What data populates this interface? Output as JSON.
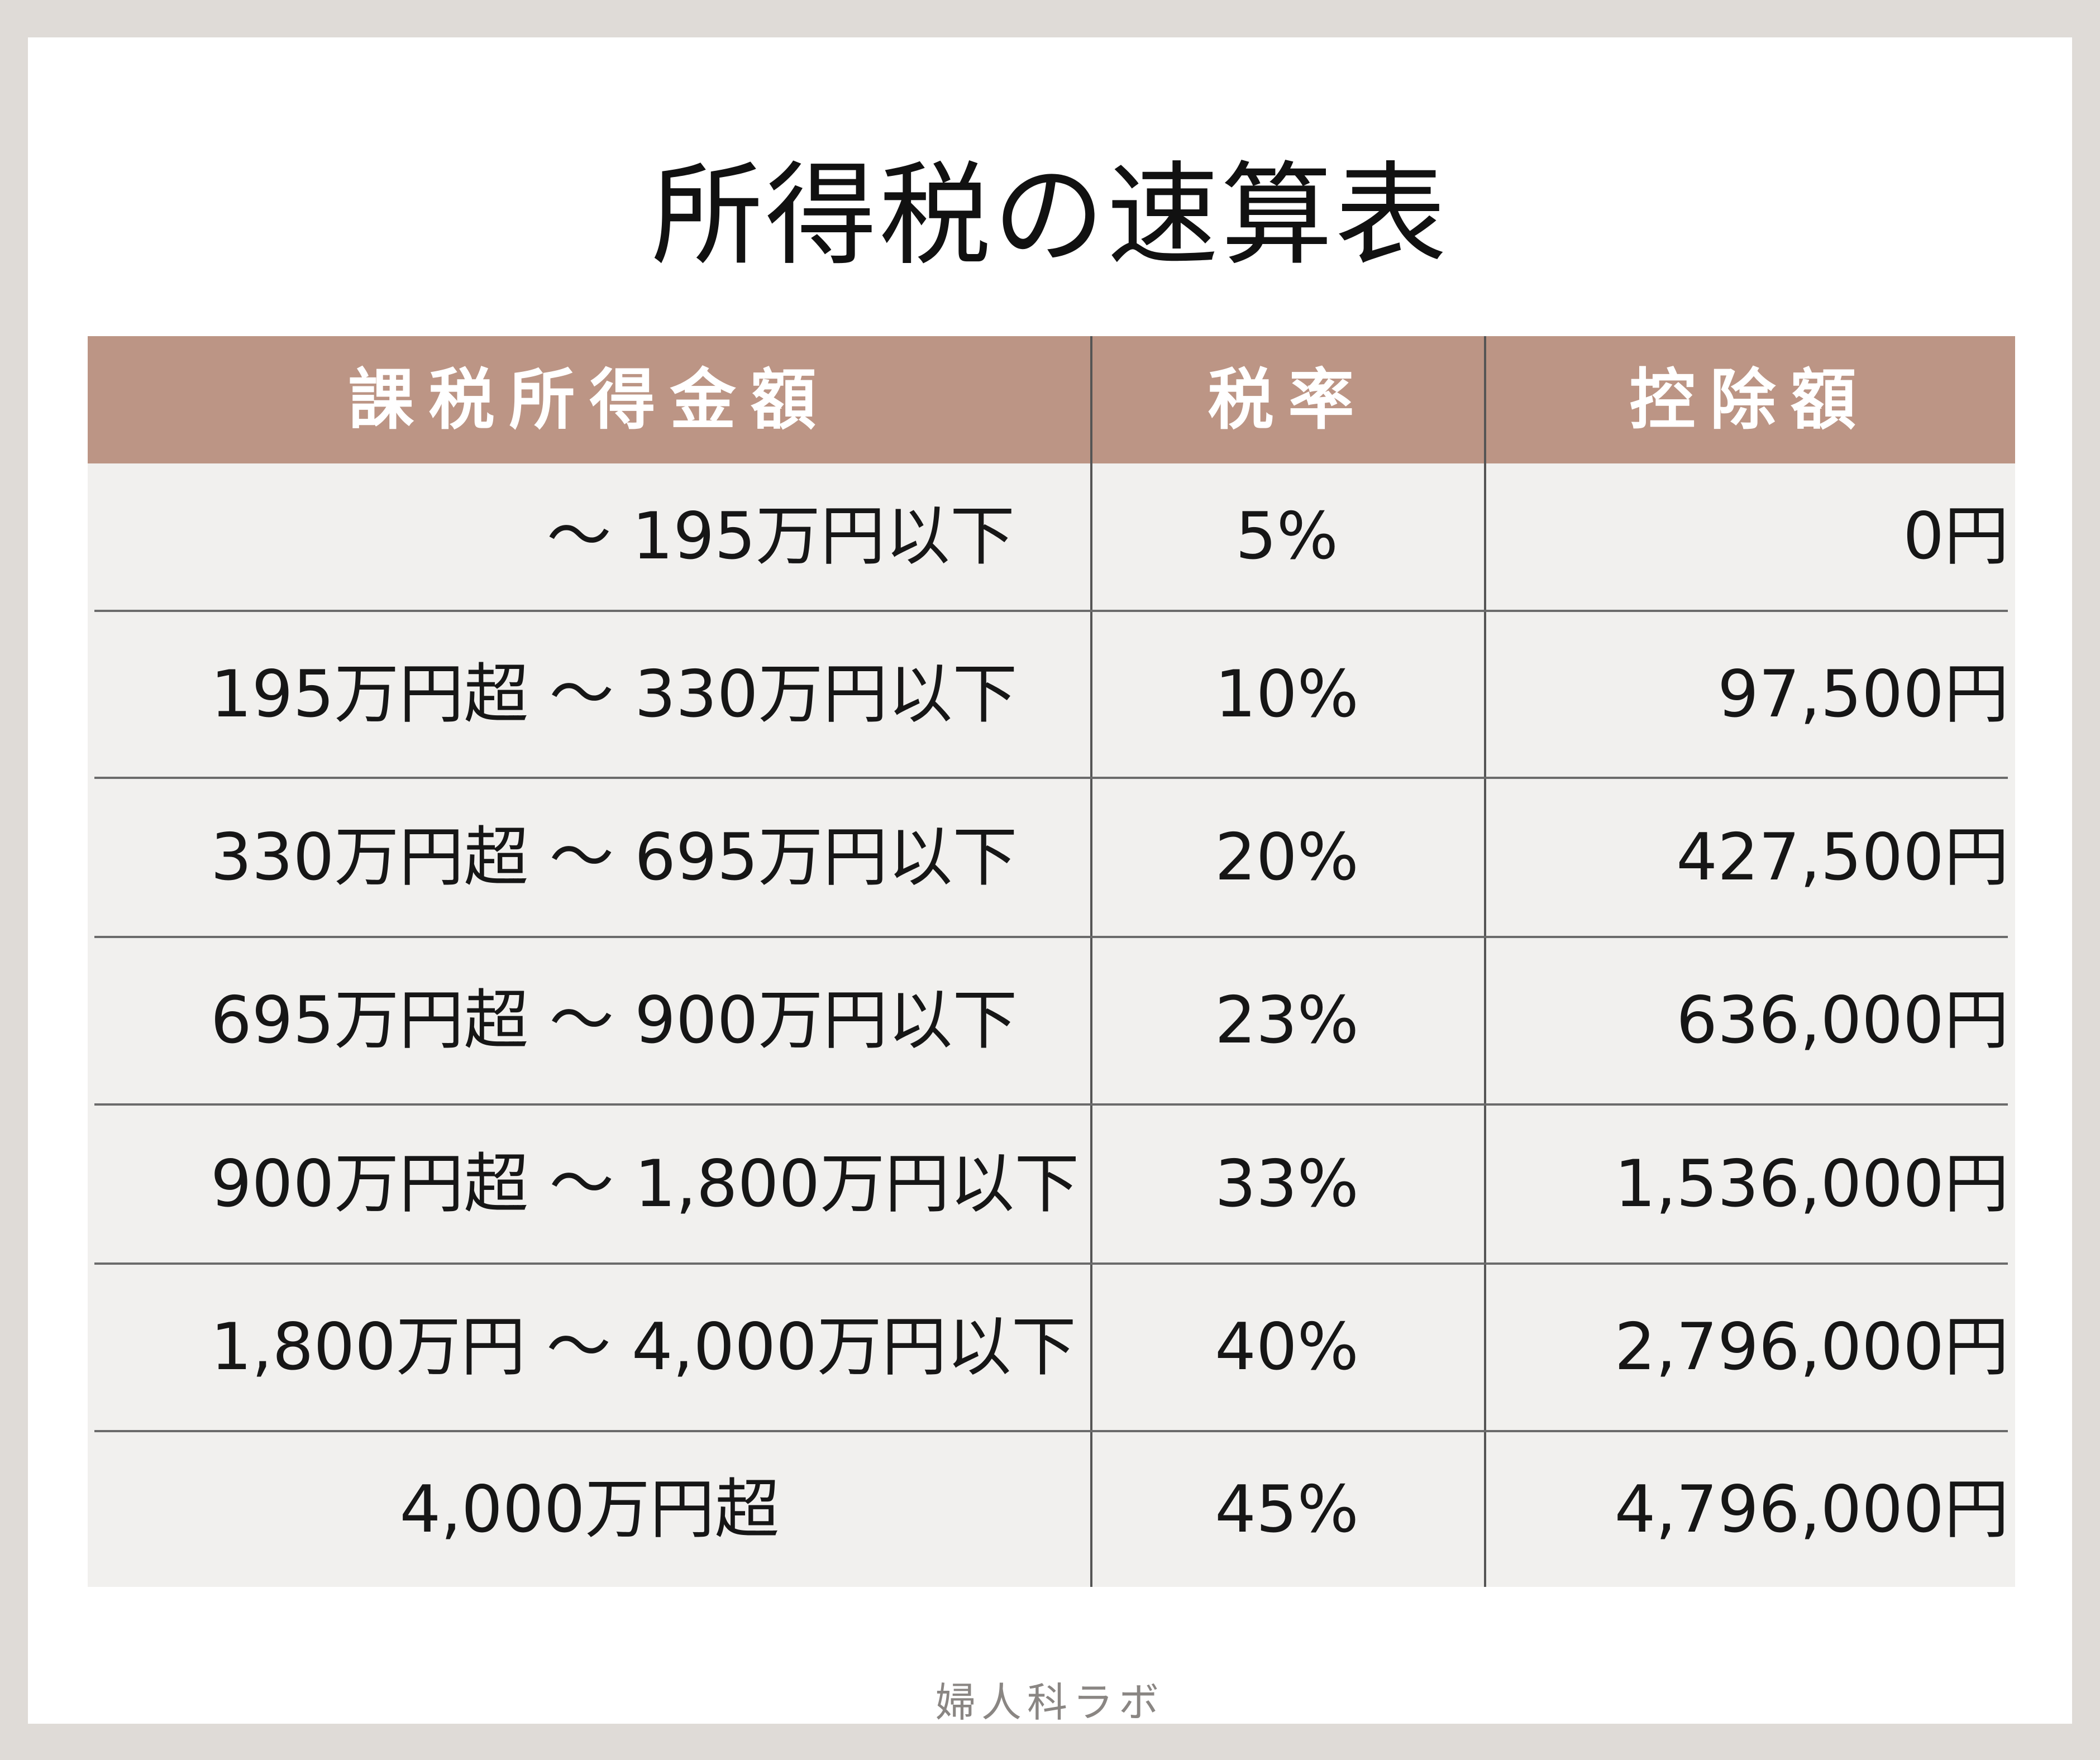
{
  "title": "所得税の速算表",
  "table": {
    "headers": [
      "課税所得金額",
      "税率",
      "控除額"
    ],
    "rows": [
      {
        "range": "～ 195万円以下",
        "rate": "5%",
        "deduction": "0円"
      },
      {
        "range": "195万円超 ～ 330万円以下",
        "rate": "10%",
        "deduction": "97,500円"
      },
      {
        "range": "330万円超 ～ 695万円以下",
        "rate": "20%",
        "deduction": "427,500円"
      },
      {
        "range": "695万円超 ～ 900万円以下",
        "rate": "23%",
        "deduction": "636,000円"
      },
      {
        "range": "900万円超 ～ 1,800万円以下",
        "rate": "33%",
        "deduction": "1,536,000円"
      },
      {
        "range": "1,800万円 ～ 4,000万円以下",
        "rate": "40%",
        "deduction": "2,796,000円"
      },
      {
        "range": "4,000万円超",
        "rate": "45%",
        "deduction": "4,796,000円"
      }
    ]
  },
  "footer": {
    "brand": "婦人科ラボ"
  },
  "colors": {
    "header_bg": "#bc9585",
    "body_bg": "#f1f0ee",
    "page_bg": "#dfdbd7"
  }
}
